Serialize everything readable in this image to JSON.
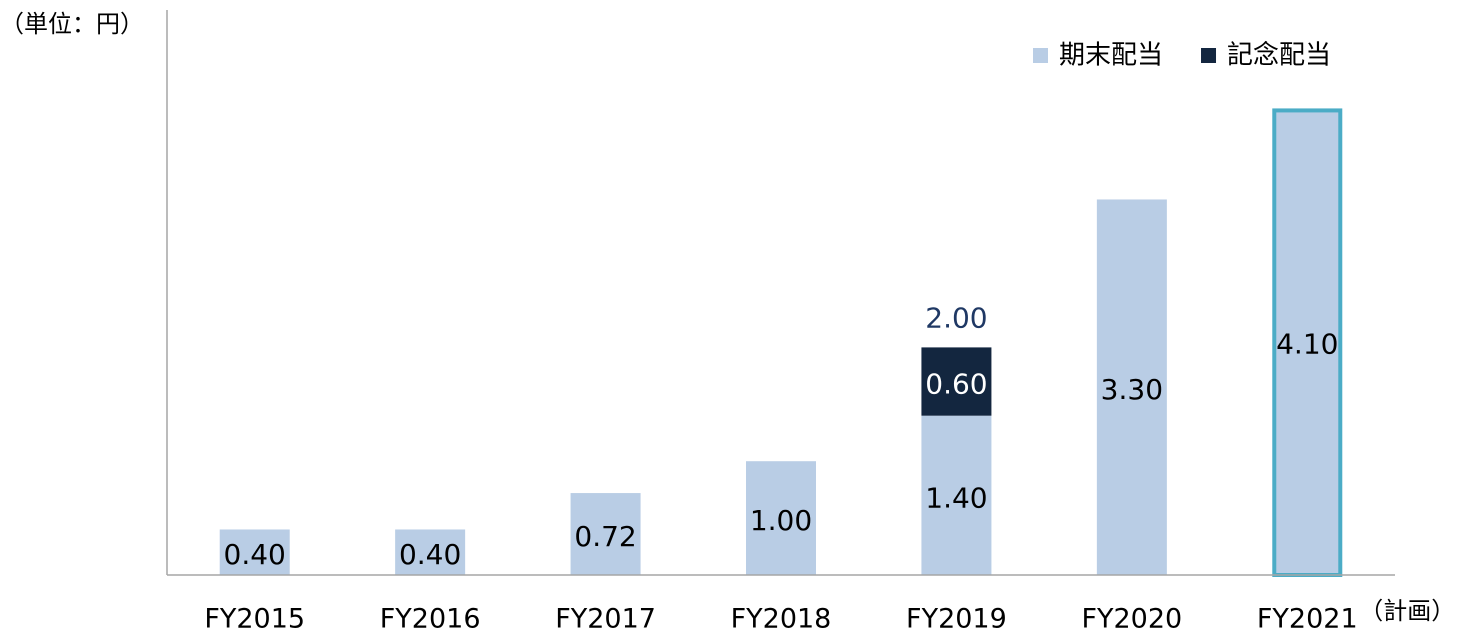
{
  "chart_data": {
    "type": "stacked_bar",
    "unit_label": "（単位：円）",
    "categories": [
      "FY2015",
      "FY2016",
      "FY2017",
      "FY2018",
      "FY2019",
      "FY2020",
      "FY2021"
    ],
    "category_notes": [
      null,
      null,
      null,
      null,
      null,
      null,
      "（計画）"
    ],
    "series": [
      {
        "name": "期末配当",
        "color": "#b9cde5",
        "label_color": "#000000",
        "values": [
          0.4,
          0.4,
          0.72,
          1.0,
          1.4,
          3.3,
          4.1
        ],
        "value_labels": [
          "0.40",
          "0.40",
          "0.72",
          "1.00",
          "1.40",
          "3.30",
          "4.10"
        ],
        "edge_colors": [
          null,
          null,
          null,
          null,
          null,
          null,
          "#4bacc6"
        ]
      },
      {
        "name": "記念配当",
        "color": "#13263f",
        "label_color": "#ffffff",
        "values": [
          null,
          null,
          null,
          null,
          0.6,
          null,
          null
        ],
        "value_labels": [
          null,
          null,
          null,
          null,
          "0.60",
          null,
          null
        ]
      }
    ],
    "annotations": [
      {
        "category": "FY2019",
        "value": 2.0,
        "text": "2.00",
        "color": "#1f3864"
      }
    ],
    "ylim": [
      0,
      5
    ],
    "legend": "top-right"
  }
}
